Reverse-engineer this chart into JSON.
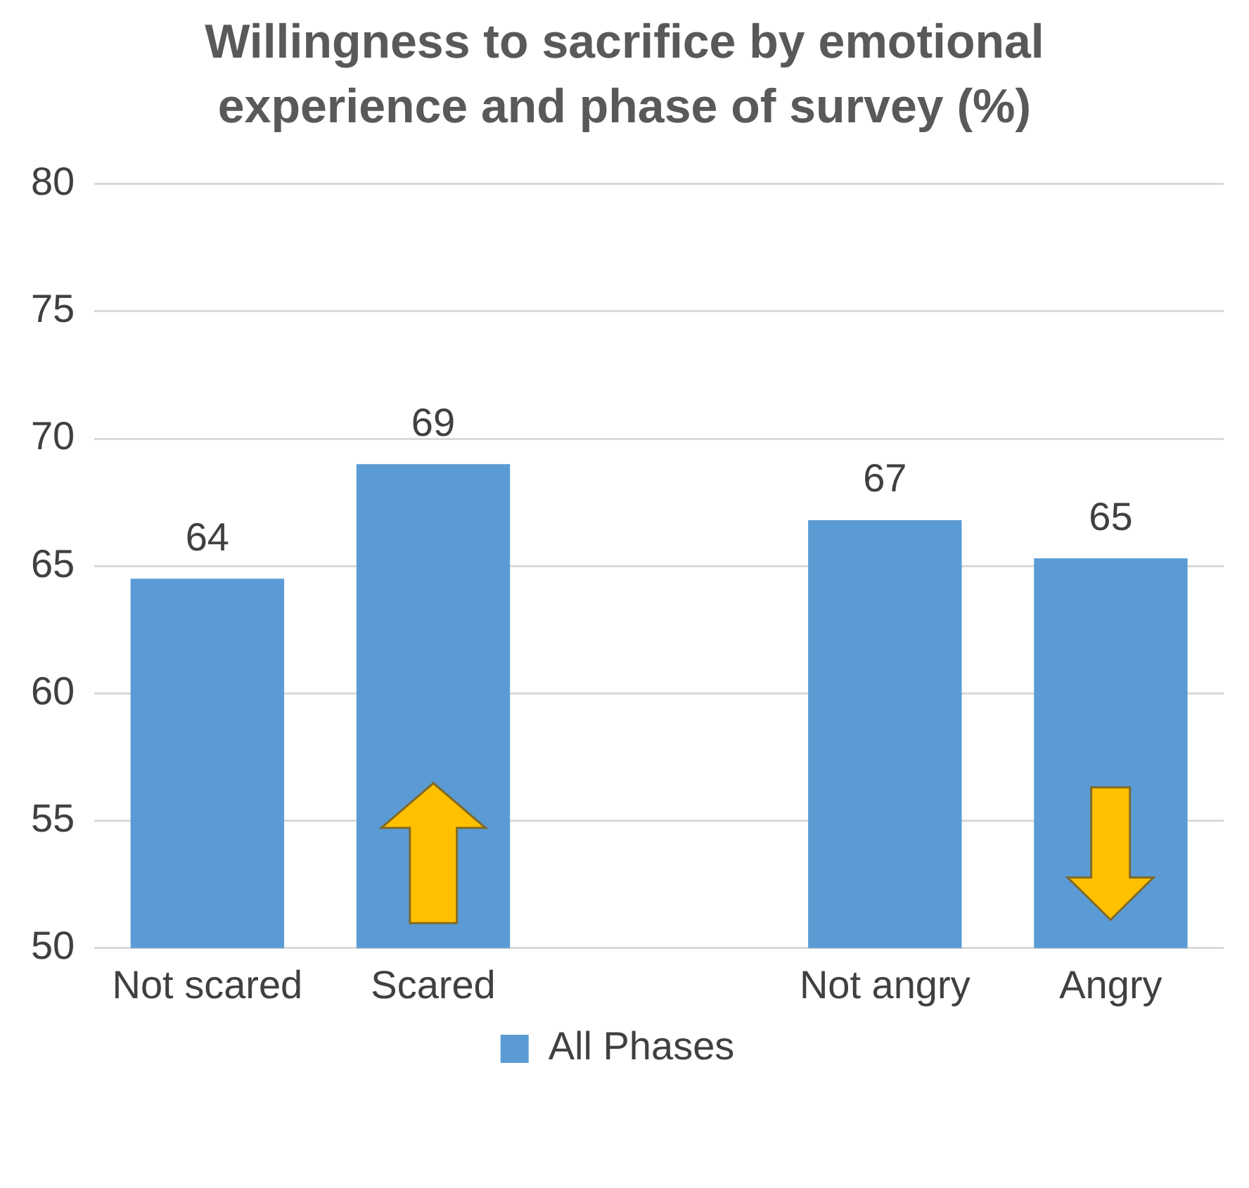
{
  "chart_data": {
    "type": "bar",
    "title": "Willingness to sacrifice by emotional experience and phase of survey (%)",
    "categories": [
      "Not scared",
      "Scared",
      null,
      "Not angry",
      "Angry"
    ],
    "series": [
      {
        "name": "All Phases",
        "color": "#5b9bd5",
        "values": [
          64.5,
          69,
          null,
          66.8,
          65.3
        ],
        "value_labels": [
          "64",
          "69",
          null,
          "67",
          "65"
        ]
      }
    ],
    "ylim": [
      50,
      80
    ],
    "yticks": [
      50,
      55,
      60,
      65,
      70,
      75,
      80
    ],
    "grid": "y",
    "legend": "bottom"
  }
}
